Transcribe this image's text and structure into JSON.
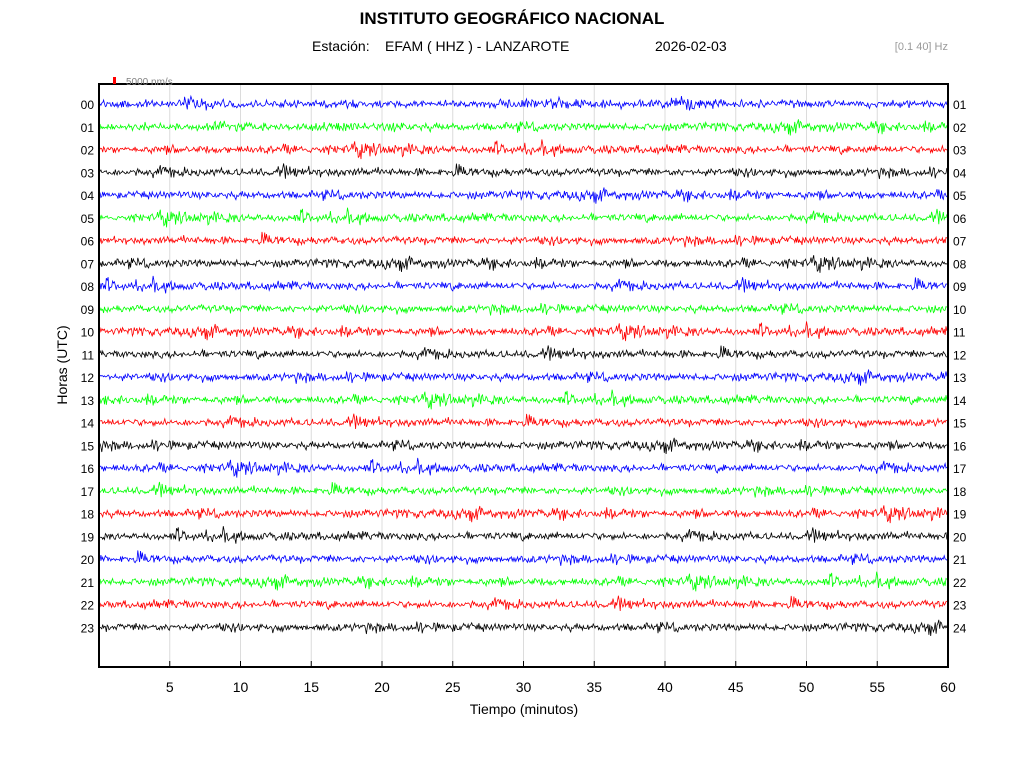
{
  "header": {
    "title": "INSTITUTO GEOGRÁFICO NACIONAL",
    "station_label": "Estación:",
    "station": "EFAM ( HHZ ) - LANZAROTE",
    "date": "2026-02-03",
    "filter": "[0.1 40] Hz"
  },
  "scale_bar": {
    "label": "5000 nm/s",
    "color": "#ff0000"
  },
  "chart_data": {
    "type": "line",
    "subtype": "helicorder",
    "xlabel": "Tiempo (minutos)",
    "ylabel": "Horas (UTC)",
    "xlim": [
      0,
      60
    ],
    "x_ticks": [
      5,
      10,
      15,
      20,
      25,
      30,
      35,
      40,
      45,
      50,
      55,
      60
    ],
    "grid": true,
    "trace_colors": [
      "#0000ff",
      "#00ff00",
      "#ff0000",
      "#000000"
    ],
    "rows_left": [
      "00",
      "01",
      "02",
      "03",
      "04",
      "05",
      "06",
      "07",
      "08",
      "09",
      "10",
      "11",
      "12",
      "13",
      "14",
      "15",
      "16",
      "17",
      "18",
      "19",
      "20",
      "21",
      "22",
      "23"
    ],
    "rows_right": [
      "01",
      "02",
      "03",
      "04",
      "05",
      "06",
      "07",
      "08",
      "09",
      "10",
      "11",
      "12",
      "13",
      "14",
      "15",
      "16",
      "17",
      "18",
      "19",
      "20",
      "21",
      "22",
      "23",
      "24"
    ]
  }
}
